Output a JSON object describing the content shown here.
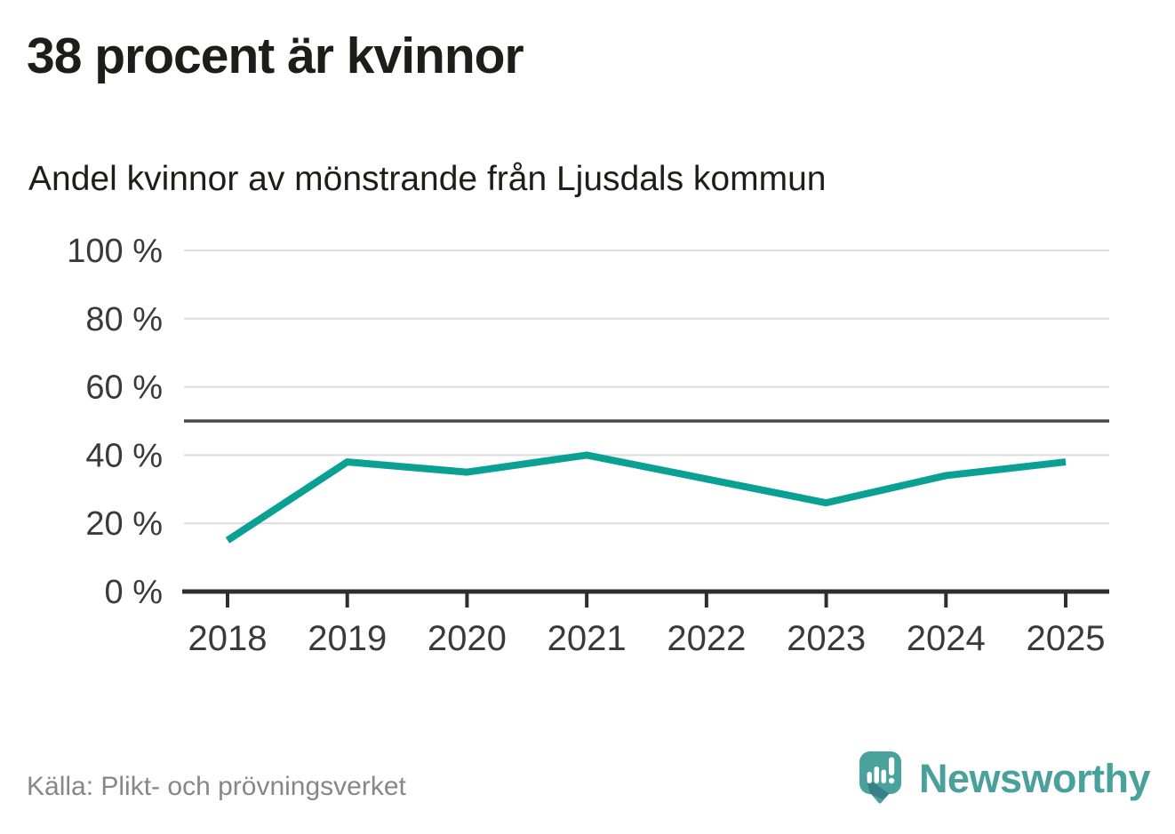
{
  "header": {
    "title": "38 procent är kvinnor",
    "subtitle": "Andel kvinnor av mönstrande från Ljusdals kommun"
  },
  "footer": {
    "source": "Källa: Plikt- och prövningsverket",
    "brand": "Newsworthy"
  },
  "chart_data": {
    "type": "line",
    "title": "38 procent är kvinnor",
    "subtitle": "Andel kvinnor av mönstrande från Ljusdals kommun",
    "x": [
      "2018",
      "2019",
      "2020",
      "2021",
      "2022",
      "2023",
      "2024",
      "2025"
    ],
    "series": [
      {
        "name": "Andel kvinnor av mönstrande",
        "values": [
          15,
          38,
          35,
          40,
          33,
          26,
          34,
          38
        ]
      }
    ],
    "xlabel": "",
    "ylabel": "",
    "ylim": [
      0,
      100
    ],
    "yticks": [
      0,
      20,
      40,
      60,
      80,
      100
    ],
    "ytick_format": "{v} %",
    "reference_line": 50,
    "grid": true,
    "legend": "none",
    "colors": {
      "line": "#0aa094",
      "reference_line": "#4a4a4a",
      "grid": "#dcdcdc",
      "axis": "#2e2e2e",
      "tick_label": "#3a3a3a"
    }
  },
  "brand_colors": {
    "bubble": "#4aa29c",
    "bubble_shade": "#388088",
    "glyph": "#ffffff",
    "text": "#4aa09b"
  },
  "icons": {
    "brand_logo": "newsworthy-logo-icon"
  }
}
